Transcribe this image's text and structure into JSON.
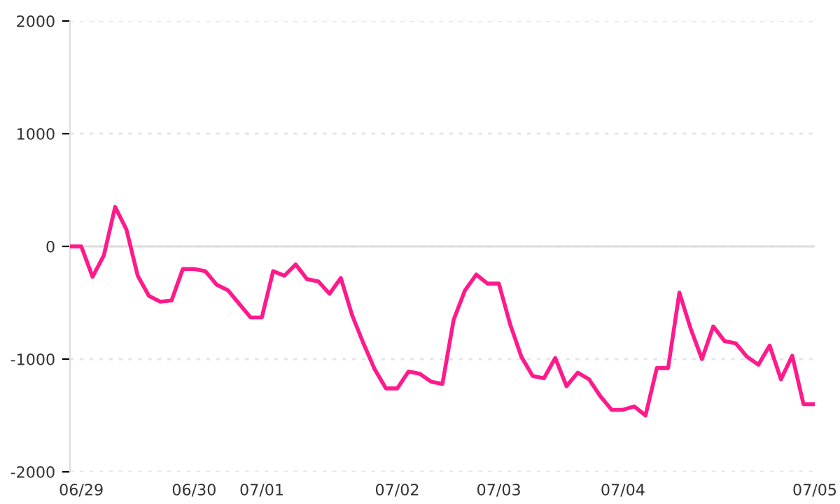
{
  "chart_data": {
    "type": "line",
    "categories": [
      null,
      "06/29",
      null,
      null,
      null,
      null,
      null,
      null,
      null,
      null,
      null,
      "06/30",
      null,
      null,
      null,
      null,
      null,
      "07/01",
      null,
      null,
      null,
      null,
      null,
      null,
      null,
      null,
      null,
      null,
      null,
      "07/02",
      null,
      null,
      null,
      null,
      null,
      null,
      null,
      null,
      "07/03",
      null,
      null,
      null,
      null,
      null,
      null,
      null,
      null,
      null,
      null,
      "07/04",
      null,
      null,
      null,
      null,
      null,
      null,
      null,
      null,
      null,
      null,
      null,
      null,
      null,
      null,
      null,
      null,
      "07/05"
    ],
    "series": [
      {
        "color": "#ff1a8c",
        "values": [
          0,
          0,
          -270,
          -80,
          350,
          150,
          -260,
          -440,
          -490,
          -480,
          -200,
          -200,
          -220,
          -340,
          -390,
          -510,
          -630,
          -630,
          -220,
          -260,
          -160,
          -290,
          -310,
          -420,
          -280,
          -610,
          -860,
          -1090,
          -1260,
          -1260,
          -1110,
          -1130,
          -1200,
          -1220,
          -650,
          -390,
          -250,
          -330,
          -330,
          -690,
          -980,
          -1150,
          -1170,
          -990,
          -1240,
          -1120,
          -1180,
          -1330,
          -1450,
          -1450,
          -1420,
          -1500,
          -1080,
          -1080,
          -410,
          -730,
          -1000,
          -710,
          -840,
          -860,
          -980,
          -1050,
          -880,
          -1180,
          -970,
          -1400,
          -1400
        ]
      }
    ],
    "ylim": [
      -2000,
      2000
    ],
    "yticks": [
      -2000,
      -1000,
      0,
      1000,
      2000
    ],
    "grid": "y",
    "ref_lines": [
      {
        "axis": "y",
        "value": 0,
        "color": "#dddddd",
        "line_style": "solid"
      }
    ],
    "marker": "none",
    "line_style": "solid"
  }
}
